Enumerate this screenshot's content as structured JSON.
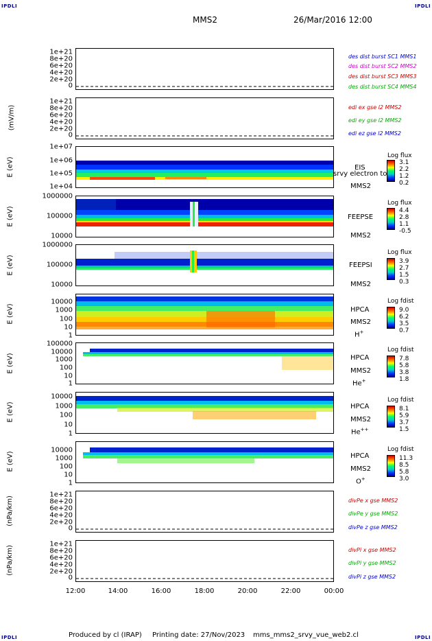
{
  "header": {
    "corner_left": "IPDLI",
    "corner_right": "IPDLI",
    "spacecraft": "MMS2",
    "datetime": "26/Mar/2016 12:00"
  },
  "footer": {
    "produced_by": "Produced by cl (IRAP)",
    "printing_date": "Printing date: 27/Nov/2023",
    "script": "mms_mms2_srvy_vue_web2.cl",
    "corner_left": "IPDLI",
    "corner_right": "IPDLI"
  },
  "chart_data": {
    "type": "heatmap",
    "x_ticks": [
      "12:00",
      "14:00",
      "16:00",
      "18:00",
      "20:00",
      "22:00",
      "00:00"
    ],
    "panels": [
      {
        "id": "des-dist",
        "kind": "line",
        "ylabel": "",
        "y_ticks": [
          "1e+21",
          "8e+20",
          "6e+20",
          "4e+20",
          "2e+20",
          "0"
        ],
        "legend": [
          {
            "text": "des dist burst SC1 MMS1",
            "color": "#0000cc"
          },
          {
            "text": "des dist burst SC2 MMS2",
            "color": "#cc00cc"
          },
          {
            "text": "des dist burst SC3 MMS3",
            "color": "#cc0000"
          },
          {
            "text": "des dist burst SC4 MMS4",
            "color": "#00aa00"
          }
        ]
      },
      {
        "id": "edi-e",
        "kind": "line",
        "ylabel": "(mV/m)",
        "y_ticks": [
          "1e+21",
          "8e+20",
          "6e+20",
          "4e+20",
          "2e+20",
          "0"
        ],
        "legend": [
          {
            "text": "edi ex gse l2 MMS2",
            "color": "#cc0000"
          },
          {
            "text": "edi ey gse l2 MMS2",
            "color": "#00aa00"
          },
          {
            "text": "edi ez gse l2 MMS2",
            "color": "#0000cc"
          }
        ]
      },
      {
        "id": "eis",
        "kind": "spectrogram",
        "ylabel": "E (eV)",
        "y_ticks": [
          "1e+07",
          "1e+06",
          "1e+05",
          "1e+04"
        ],
        "side_label": [
          "EIS",
          "MMS2"
        ],
        "overlay_text": "srvy electron to",
        "colorbar": {
          "title": "Log flux",
          "values": [
            "3.1",
            "2.2",
            "1.2",
            "0.2"
          ]
        }
      },
      {
        "id": "feeps-e",
        "kind": "spectrogram",
        "ylabel": "E (eV)",
        "y_ticks": [
          "1000000",
          "100000",
          "10000"
        ],
        "side_label": [
          "FEEPSE",
          "MMS2"
        ],
        "colorbar": {
          "title": "Log flux",
          "values": [
            "4.4",
            "2.8",
            "1.1",
            "-0.5"
          ]
        }
      },
      {
        "id": "feeps-i",
        "kind": "spectrogram",
        "ylabel": "E (eV)",
        "y_ticks": [
          "1000000",
          "100000",
          "10000"
        ],
        "side_label": [
          "FEEPSI",
          "MMS2"
        ],
        "colorbar": {
          "title": "Log flux",
          "values": [
            "3.9",
            "2.7",
            "1.5",
            "0.3"
          ]
        }
      },
      {
        "id": "hpca-h",
        "kind": "spectrogram",
        "ylabel": "E (eV)",
        "y_ticks": [
          "10000",
          "1000",
          "100",
          "10",
          "1"
        ],
        "side_label": [
          "HPCA",
          "MMS2"
        ],
        "ion": "H",
        "ion_sup": "+",
        "colorbar": {
          "title": "Log fdist",
          "values": [
            "9.0",
            "6.2",
            "3.5",
            "0.7"
          ]
        }
      },
      {
        "id": "hpca-he1",
        "kind": "spectrogram",
        "ylabel": "E (eV)",
        "y_ticks": [
          "100000",
          "10000",
          "1000",
          "100",
          "10",
          "1"
        ],
        "side_label": [
          "HPCA",
          "MMS2"
        ],
        "ion": "He",
        "ion_sup": "+",
        "colorbar": {
          "title": "Log fdist",
          "values": [
            "7.8",
            "5.8",
            "3.8",
            "1.8"
          ]
        }
      },
      {
        "id": "hpca-he2",
        "kind": "spectrogram",
        "ylabel": "E (eV)",
        "y_ticks": [
          "10000",
          "1000",
          "100",
          "10",
          "1"
        ],
        "side_label": [
          "HPCA",
          "MMS2"
        ],
        "ion": "He",
        "ion_sup": "++",
        "colorbar": {
          "title": "Log fdist",
          "values": [
            "8.1",
            "5.9",
            "3.7",
            "1.5"
          ]
        }
      },
      {
        "id": "hpca-o",
        "kind": "spectrogram",
        "ylabel": "E (eV)",
        "y_ticks": [
          "10000",
          "1000",
          "100",
          "10",
          "1"
        ],
        "side_label": [
          "HPCA",
          "MMS2"
        ],
        "ion": "O",
        "ion_sup": "+",
        "colorbar": {
          "title": "Log fdist",
          "values": [
            "11.3",
            "8.5",
            "5.8",
            "3.0"
          ]
        }
      },
      {
        "id": "divpe",
        "kind": "line",
        "ylabel": "(nPa/km)",
        "y_ticks": [
          "1e+21",
          "8e+20",
          "6e+20",
          "4e+20",
          "2e+20",
          "0"
        ],
        "legend": [
          {
            "text": "divPe x gse MMS2",
            "color": "#cc0000"
          },
          {
            "text": "divPe y gse MMS2",
            "color": "#00aa00"
          },
          {
            "text": "divPe z gse MMS2",
            "color": "#0000cc"
          }
        ]
      },
      {
        "id": "divpi",
        "kind": "line",
        "ylabel": "(nPa/km)",
        "y_ticks": [
          "1e+21",
          "8e+20",
          "6e+20",
          "4e+20",
          "2e+20",
          "0"
        ],
        "legend": [
          {
            "text": "divPi x gse MMS2",
            "color": "#cc0000"
          },
          {
            "text": "divPi y gse MMS2",
            "color": "#00aa00"
          },
          {
            "text": "divPi z gse MMS2",
            "color": "#0000cc"
          }
        ]
      }
    ]
  }
}
